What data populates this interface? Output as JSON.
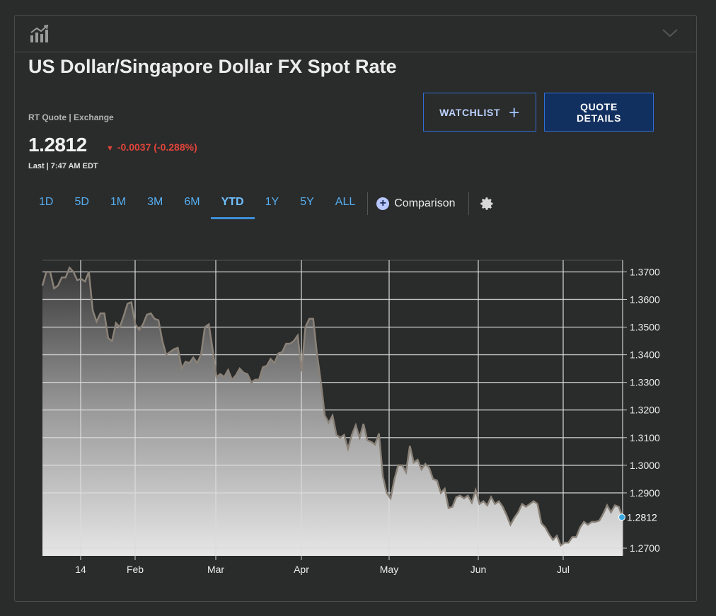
{
  "header": {
    "chart_icon": "bar-line-chart-icon",
    "collapse_icon": "chevron-down-icon"
  },
  "quote": {
    "title": "US Dollar/Singapore Dollar FX Spot Rate",
    "subtitle": "RT Quote | Exchange",
    "price": "1.2812",
    "change": "-0.0037 (-0.288%)",
    "change_color": "#e0443a",
    "last_label": "Last | 7:47 AM EDT"
  },
  "buttons": {
    "watchlist": "WATCHLIST",
    "quote_details": "QUOTE DETAILS"
  },
  "ranges": [
    "1D",
    "5D",
    "1M",
    "3M",
    "6M",
    "YTD",
    "1Y",
    "5Y",
    "ALL"
  ],
  "active_range": "YTD",
  "comparison_label": "Comparison",
  "settings_icon": "gear-icon",
  "chart_data": {
    "type": "area",
    "title": "",
    "xlabel": "",
    "ylabel": "",
    "x_ticks": [
      "14",
      "Feb",
      "Mar",
      "Apr",
      "May",
      "Jun",
      "Jul"
    ],
    "y_ticks": [
      "1.3700",
      "1.3600",
      "1.3500",
      "1.3400",
      "1.3300",
      "1.3200",
      "1.3100",
      "1.3000",
      "1.2900",
      "1.2800",
      "1.2700"
    ],
    "ylim": [
      1.2672,
      1.3742
    ],
    "current_value_label": "1.2812",
    "line_color": "#8a8278",
    "marker_color": "#3aa8e0",
    "grid": true,
    "series": [
      {
        "values": [
          1.365,
          1.37,
          1.37,
          1.364,
          1.365,
          1.368,
          1.368,
          1.3715,
          1.37,
          1.367,
          1.3675,
          1.3665,
          1.37,
          1.356,
          1.352,
          1.355,
          1.355,
          1.346,
          1.345,
          1.3515,
          1.35,
          1.354,
          1.3585,
          1.359,
          1.351,
          1.349,
          1.351,
          1.3545,
          1.355,
          1.353,
          1.3525,
          1.345,
          1.34,
          1.341,
          1.342,
          1.3425,
          1.335,
          1.3375,
          1.337,
          1.339,
          1.337,
          1.34,
          1.35,
          1.351,
          1.342,
          1.332,
          1.333,
          1.332,
          1.3345,
          1.331,
          1.3325,
          1.335,
          1.3335,
          1.333,
          1.33,
          1.331,
          1.331,
          1.3355,
          1.336,
          1.3385,
          1.337,
          1.3405,
          1.341,
          1.344,
          1.344,
          1.345,
          1.347,
          1.334,
          1.35,
          1.353,
          1.353,
          1.34,
          1.33,
          1.318,
          1.3155,
          1.318,
          1.311,
          1.31,
          1.311,
          1.306,
          1.311,
          1.3145,
          1.31,
          1.315,
          1.309,
          1.3085,
          1.3075,
          1.3115,
          1.296,
          1.29,
          1.288,
          1.295,
          1.3,
          1.3,
          1.2975,
          1.307,
          1.301,
          1.302,
          1.2985,
          1.3005,
          1.299,
          1.295,
          1.2945,
          1.29,
          1.2915,
          1.2845,
          1.285,
          1.2885,
          1.289,
          1.288,
          1.289,
          1.2865,
          1.291,
          1.286,
          1.287,
          1.2855,
          1.2885,
          1.286,
          1.287,
          1.285,
          1.282,
          1.2785,
          1.281,
          1.283,
          1.286,
          1.285,
          1.286,
          1.287,
          1.286,
          1.279,
          1.2775,
          1.275,
          1.273,
          1.2745,
          1.271,
          1.272,
          1.272,
          1.274,
          1.274,
          1.2775,
          1.2795,
          1.2785,
          1.2795,
          1.2795,
          1.28,
          1.2825,
          1.2855,
          1.283,
          1.2855,
          1.285,
          1.2812
        ]
      }
    ]
  }
}
